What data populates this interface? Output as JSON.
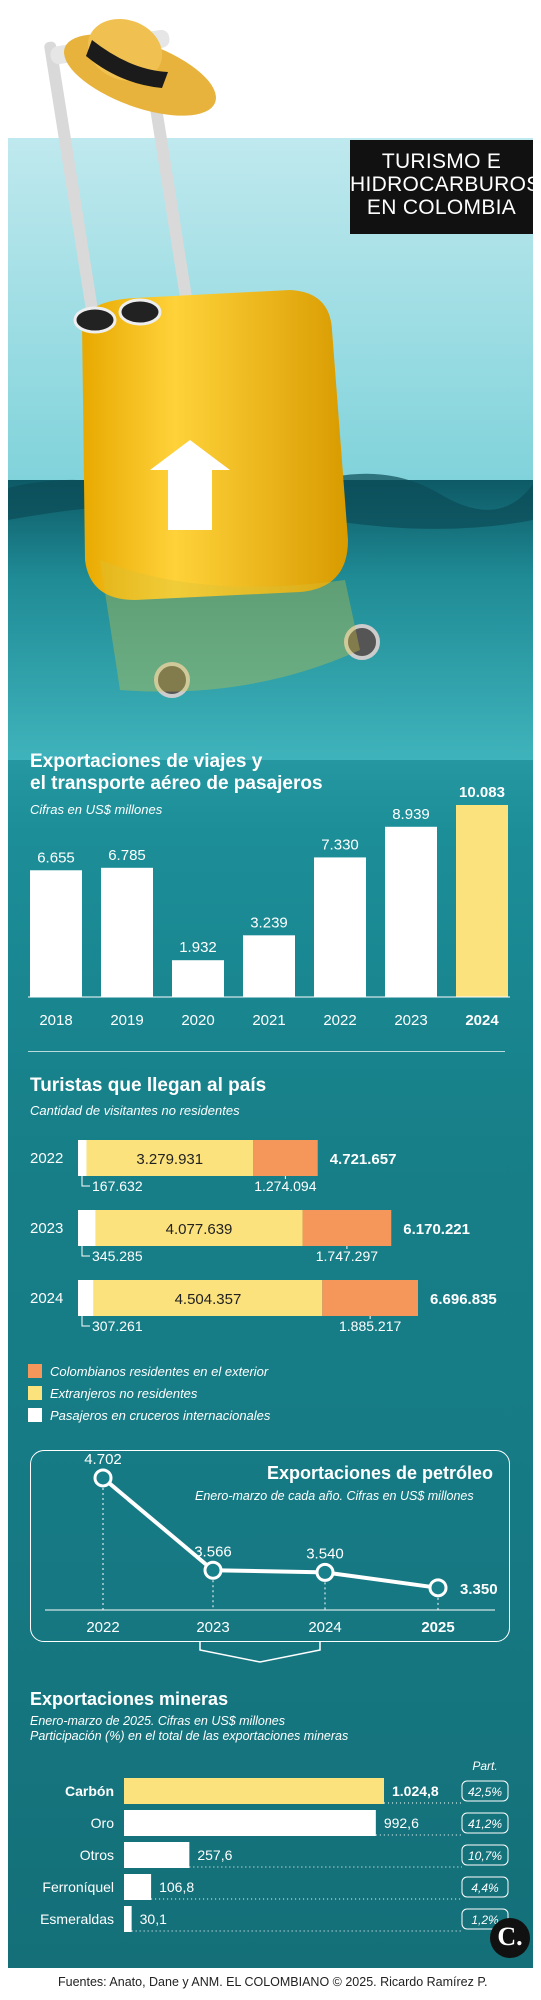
{
  "header": {
    "title_lines": [
      "TURISMO E",
      "HIDROCARBUROS",
      "EN COLOMBIA"
    ]
  },
  "travel": {
    "title_lines": [
      "Exportaciones de viajes y",
      "el transporte aéreo de pasajeros"
    ],
    "subtitle": "Cifras en US$ millones"
  },
  "tourists": {
    "title": "Turistas que llegan al país",
    "subtitle": "Cantidad de visitantes no residentes",
    "legend": [
      "Colombianos residentes en el exterior",
      "Extranjeros no residentes",
      "Pasajeros en cruceros internacionales"
    ]
  },
  "oil": {
    "title": "Exportaciones de petróleo",
    "subtitle": "Enero-marzo de cada año. Cifras en US$ millones"
  },
  "mining": {
    "title": "Exportaciones mineras",
    "subtitle_lines": [
      "Enero-marzo de 2025. Cifras en US$ millones",
      "Participación (%) en el total de las exportaciones mineras"
    ],
    "part_label": "Part."
  },
  "footer": {
    "source": "Fuentes: Anato, Dane y ANM. EL COLOMBIANO © 2025. Ricardo Ramírez P.",
    "logo": "C."
  },
  "colors": {
    "white": "#ffffff",
    "yellow": "#fbe27c",
    "orange": "#f5975a",
    "dark": "#111111"
  },
  "chart_data": [
    {
      "type": "bar",
      "title": "Exportaciones de viajes y el transporte aéreo de pasajeros",
      "subtitle": "Cifras en US$ millones",
      "categories": [
        "2018",
        "2019",
        "2020",
        "2021",
        "2022",
        "2023",
        "2024"
      ],
      "values": [
        6655,
        6785,
        1932,
        3239,
        7330,
        8939,
        10083
      ],
      "labels": [
        "6.655",
        "6.785",
        "1.932",
        "3.239",
        "7.330",
        "8.939",
        "10.083"
      ],
      "highlight": "2024",
      "ylim": [
        0,
        10083
      ]
    },
    {
      "type": "bar",
      "orientation": "horizontal",
      "stacked": true,
      "title": "Turistas que llegan al país",
      "subtitle": "Cantidad de visitantes no residentes",
      "categories": [
        "2022",
        "2023",
        "2024"
      ],
      "series": [
        {
          "name": "Pasajeros en cruceros internacionales",
          "values": [
            167632,
            345285,
            307261
          ],
          "labels": [
            "167.632",
            "345.285",
            "307.261"
          ],
          "color": "#ffffff"
        },
        {
          "name": "Extranjeros no residentes",
          "values": [
            3279931,
            4077639,
            4504357
          ],
          "labels": [
            "3.279.931",
            "4.077.639",
            "4.504.357"
          ],
          "color": "#fbe27c"
        },
        {
          "name": "Colombianos residentes en el exterior",
          "values": [
            1274094,
            1747297,
            1885217
          ],
          "labels": [
            "1.274.094",
            "1.747.297",
            "1.885.217"
          ],
          "color": "#f5975a"
        }
      ],
      "totals": [
        4721657,
        6170221,
        6696835
      ],
      "total_labels": [
        "4.721.657",
        "6.170.221",
        "6.696.835"
      ],
      "legend": "bottom-left"
    },
    {
      "type": "line",
      "title": "Exportaciones de petróleo",
      "subtitle": "Enero-marzo de cada año. Cifras en US$ millones",
      "categories": [
        "2022",
        "2023",
        "2024",
        "2025"
      ],
      "values": [
        4702,
        3566,
        3540,
        3350
      ],
      "labels": [
        "4.702",
        "3.566",
        "3.540",
        "3.350"
      ],
      "highlight": "2025"
    },
    {
      "type": "bar",
      "orientation": "horizontal",
      "title": "Exportaciones mineras",
      "subtitle": "Enero-marzo de 2025. Cifras en US$ millones",
      "categories": [
        "Carbón",
        "Oro",
        "Otros",
        "Ferroníquel",
        "Esmeraldas"
      ],
      "values": [
        1024.8,
        992.6,
        257.6,
        106.8,
        30.1
      ],
      "labels": [
        "1.024,8",
        "992,6",
        "257,6",
        "106,8",
        "30,1"
      ],
      "share_labels": [
        "42,5%",
        "41,2%",
        "10,7%",
        "4,4%",
        "1,2%"
      ],
      "share_header": "Part.",
      "highlight": "Carbón"
    }
  ]
}
